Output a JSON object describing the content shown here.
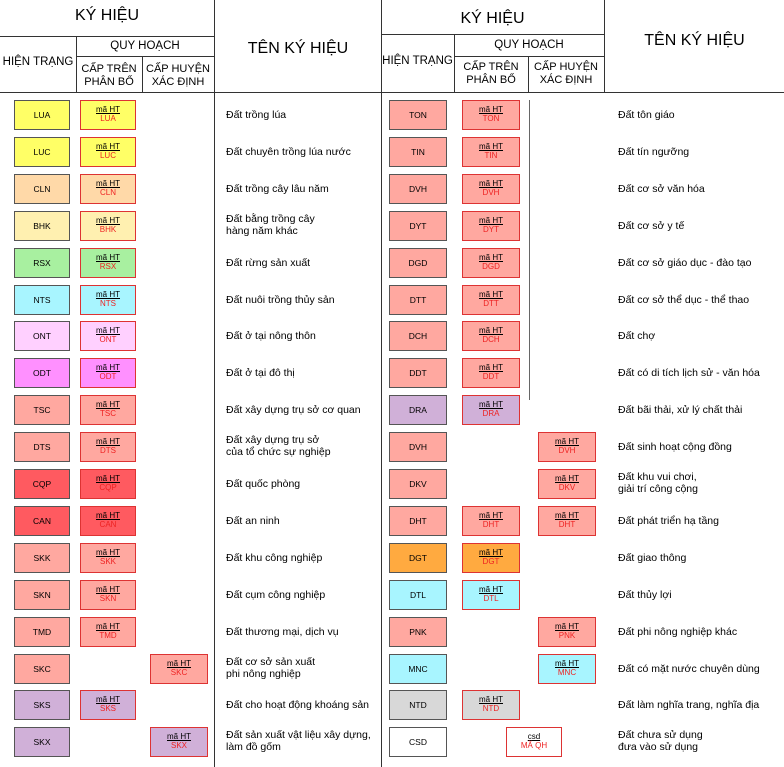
{
  "headers": {
    "ky_hieu": "KÝ HIỆU",
    "hien_trang": "HIỆN TRẠNG",
    "quy_hoach": "QUY HOẠCH",
    "cap_tren": "CẤP TRÊN\nPHÂN BỔ",
    "cap_huyen": "CẤP HUYỆN\nXÁC ĐỊNH",
    "ten_ky_hieu": "TÊN KÝ HIỆU"
  },
  "left_rows": [
    {
      "code": "LUA",
      "color": "#ffff66",
      "plan_col": "tren",
      "plan_label": "mã HT",
      "name": "Đất trồng lúa"
    },
    {
      "code": "LUC",
      "color": "#ffff66",
      "plan_col": "tren",
      "plan_label": "mã HT",
      "name": "Đất chuyên trồng lúa nước"
    },
    {
      "code": "CLN",
      "color": "#ffd9a8",
      "plan_col": "tren",
      "plan_label": "mã HT",
      "name": "Đất trồng cây lâu năm"
    },
    {
      "code": "BHK",
      "color": "#fff0b0",
      "plan_col": "tren",
      "plan_label": "mã HT",
      "name": "Đất bằng trồng cây\nhàng năm khác"
    },
    {
      "code": "RSX",
      "color": "#a8f0a0",
      "plan_col": "tren",
      "plan_label": "mã HT",
      "name": "Đất rừng sản xuất"
    },
    {
      "code": "NTS",
      "color": "#a8f5ff",
      "plan_col": "tren",
      "plan_label": "mã HT",
      "name": "Đất nuôi trồng thủy sản"
    },
    {
      "code": "ONT",
      "color": "#ffd0ff",
      "plan_col": "tren",
      "plan_label": "mã HT",
      "name": "Đất ở tại nông thôn"
    },
    {
      "code": "ODT",
      "color": "#ff90ff",
      "plan_col": "tren",
      "plan_label": "mã HT",
      "name": "Đất ở tại đô thị"
    },
    {
      "code": "TSC",
      "color": "#ffa8a0",
      "plan_col": "tren",
      "plan_label": "mã HT",
      "name": "Đất xây dựng trụ sở cơ quan"
    },
    {
      "code": "DTS",
      "color": "#ffa8a0",
      "plan_col": "tren",
      "plan_label": "mã HT",
      "name": "Đất xây dựng trụ sở\ncủa tổ chức sự nghiệp"
    },
    {
      "code": "CQP",
      "color": "#ff5a60",
      "plan_col": "tren",
      "plan_label": "mã HT",
      "name": "Đất quốc phòng"
    },
    {
      "code": "CAN",
      "color": "#ff5a60",
      "plan_col": "tren",
      "plan_label": "mã HT",
      "name": "Đất an ninh"
    },
    {
      "code": "SKK",
      "color": "#ffa8a0",
      "plan_col": "tren",
      "plan_label": "mã HT",
      "name": "Đất khu công nghiệp"
    },
    {
      "code": "SKN",
      "color": "#ffa8a0",
      "plan_col": "tren",
      "plan_label": "mã HT",
      "name": "Đất cụm công nghiệp"
    },
    {
      "code": "TMD",
      "color": "#ffa8a0",
      "plan_col": "tren",
      "plan_label": "mã HT",
      "name": "Đất thương mại, dịch vụ"
    },
    {
      "code": "SKC",
      "color": "#ffa8a0",
      "plan_col": "huyen",
      "plan_label": "mã HT",
      "name": "Đất cơ sở sản xuất\nphi nông nghiệp"
    },
    {
      "code": "SKS",
      "color": "#d0b0d8",
      "plan_col": "tren",
      "plan_label": "mã HT",
      "name": "Đất cho hoạt động khoáng sản"
    },
    {
      "code": "SKX",
      "color": "#d0b0d8",
      "plan_col": "huyen",
      "plan_label": "mã HT",
      "name": "Đất sản xuất vật liệu xây dựng,\nlàm đồ gốm"
    }
  ],
  "right_rows": [
    {
      "code": "TON",
      "color": "#ffa8a0",
      "plan_col": "tren",
      "plan_label": "mã HT",
      "name": "Đất tôn giáo"
    },
    {
      "code": "TIN",
      "color": "#ffa8a0",
      "plan_col": "tren",
      "plan_label": "mã HT",
      "name": "Đất tín ngưỡng"
    },
    {
      "code": "DVH",
      "color": "#ffa8a0",
      "plan_col": "tren",
      "plan_label": "mã HT",
      "name": "Đất cơ sở văn hóa"
    },
    {
      "code": "DYT",
      "color": "#ffa8a0",
      "plan_col": "tren",
      "plan_label": "mã HT",
      "name": "Đất cơ sở y tế"
    },
    {
      "code": "DGD",
      "color": "#ffa8a0",
      "plan_col": "tren",
      "plan_label": "mã HT",
      "name": "Đất cơ sở giáo dục - đào tạo"
    },
    {
      "code": "DTT",
      "color": "#ffa8a0",
      "plan_col": "tren",
      "plan_label": "mã HT",
      "name": "Đất cơ sở thể dục - thể thao"
    },
    {
      "code": "DCH",
      "color": "#ffa8a0",
      "plan_col": "tren",
      "plan_label": "mã HT",
      "name": "Đất chợ"
    },
    {
      "code": "DDT",
      "color": "#ffa8a0",
      "plan_col": "tren",
      "plan_label": "mã HT",
      "name": "Đất có di tích lịch sử - văn hóa"
    },
    {
      "code": "DRA",
      "color": "#d0b0d8",
      "plan_col": "tren",
      "plan_label": "mã HT",
      "name": "Đất bãi thải, xử lý chất thải"
    },
    {
      "code": "DVH",
      "color": "#ffa8a0",
      "plan_col": "huyen",
      "plan_label": "mã HT",
      "name": "Đất sinh hoạt cộng đồng"
    },
    {
      "code": "DKV",
      "color": "#ffa8a0",
      "plan_col": "huyen",
      "plan_label": "mã HT",
      "name": "Đất khu vui chơi,\ngiải trí công cộng"
    },
    {
      "code": "DHT",
      "color": "#ffa8a0",
      "plan_col": "both",
      "plan_label": "mã HT",
      "name": "Đất phát triển hạ tầng"
    },
    {
      "code": "DGT",
      "color": "#ffaa40",
      "plan_col": "tren",
      "plan_label": "mã HT",
      "name": "Đất giao thông"
    },
    {
      "code": "DTL",
      "color": "#a8f5ff",
      "plan_col": "tren",
      "plan_label": "mã HT",
      "name": "Đất thủy lợi"
    },
    {
      "code": "PNK",
      "color": "#ffa8a0",
      "plan_col": "huyen",
      "plan_label": "mã HT",
      "name": "Đất phi nông nghiệp khác"
    },
    {
      "code": "MNC",
      "color": "#a8f5ff",
      "plan_col": "huyen",
      "plan_label": "mã HT",
      "name": "Đất có mặt nước chuyên dùng"
    },
    {
      "code": "NTD",
      "color": "#d8d8d8",
      "plan_col": "tren",
      "plan_label": "mã HT",
      "name": "Đất làm nghĩa trang, nghĩa địa"
    },
    {
      "code": "CSD",
      "color": "#ffffff",
      "plan_col": "special",
      "plan_label": "csd",
      "plan_code": "MÃ QH",
      "name": "Đất chưa sử dụng\nđưa vào sử dụng"
    }
  ]
}
